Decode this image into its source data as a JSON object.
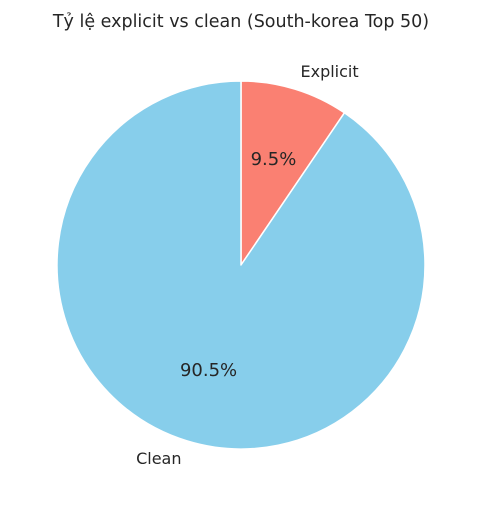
{
  "chart_data": {
    "type": "pie",
    "title": "Tỷ lệ explicit vs clean (South-korea Top 50)",
    "slices": [
      {
        "label": "Explicit",
        "value": 9.5,
        "pct_label": "9.5%",
        "color": "#fa8072"
      },
      {
        "label": "Clean",
        "value": 90.5,
        "pct_label": "90.5%",
        "color": "#87ceeb"
      }
    ],
    "start_angle_deg": 90,
    "direction": "clockwise",
    "edge_color": "#ffffff"
  }
}
